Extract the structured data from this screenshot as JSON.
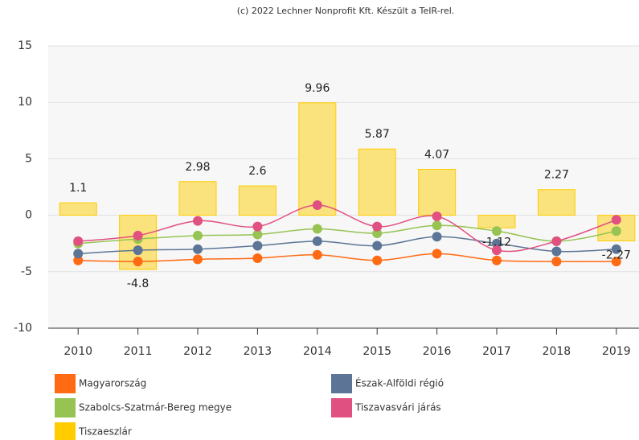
{
  "chart_data": {
    "type": "line",
    "credit": "(c) 2022 Lechner Nonprofit Kft. Készült a TeIR-rel.",
    "categories": [
      "2010",
      "2011",
      "2012",
      "2013",
      "2014",
      "2015",
      "2016",
      "2017",
      "2018",
      "2019"
    ],
    "ylim": [
      -10,
      15
    ],
    "yticks": [
      -10,
      -5,
      0,
      5,
      10,
      15
    ],
    "grid": true,
    "series": [
      {
        "name": "Magyarország",
        "type": "line",
        "color": "#ff6a13",
        "values": [
          -4,
          -4.1,
          -3.9,
          -3.8,
          -3.5,
          -4,
          -3.4,
          -4,
          -4.1,
          -4.1
        ]
      },
      {
        "name": "Észak-Alföldi régió",
        "type": "line",
        "color": "#5c7596",
        "values": [
          -3.4,
          -3.1,
          -3,
          -2.7,
          -2.3,
          -2.7,
          -1.9,
          -2.5,
          -3.2,
          -3
        ]
      },
      {
        "name": "Szabolcs-Szatmár-Bereg megye",
        "type": "line",
        "color": "#96c352",
        "values": [
          -2.5,
          -2.1,
          -1.8,
          -1.7,
          -1.2,
          -1.6,
          -0.9,
          -1.4,
          -2.3,
          -1.4
        ]
      },
      {
        "name": "Tiszavasvári járás",
        "type": "line",
        "color": "#e05080",
        "values": [
          -2.3,
          -1.8,
          -0.5,
          -1,
          0.9,
          -1,
          -0.1,
          -3.1,
          -2.3,
          -0.4
        ]
      },
      {
        "name": "Tiszaeszlár",
        "type": "bar",
        "color": "#ffcc00",
        "values": [
          1.1,
          -4.8,
          2.98,
          2.6,
          9.96,
          5.87,
          4.07,
          -1.12,
          2.27,
          -2.27
        ]
      }
    ]
  }
}
